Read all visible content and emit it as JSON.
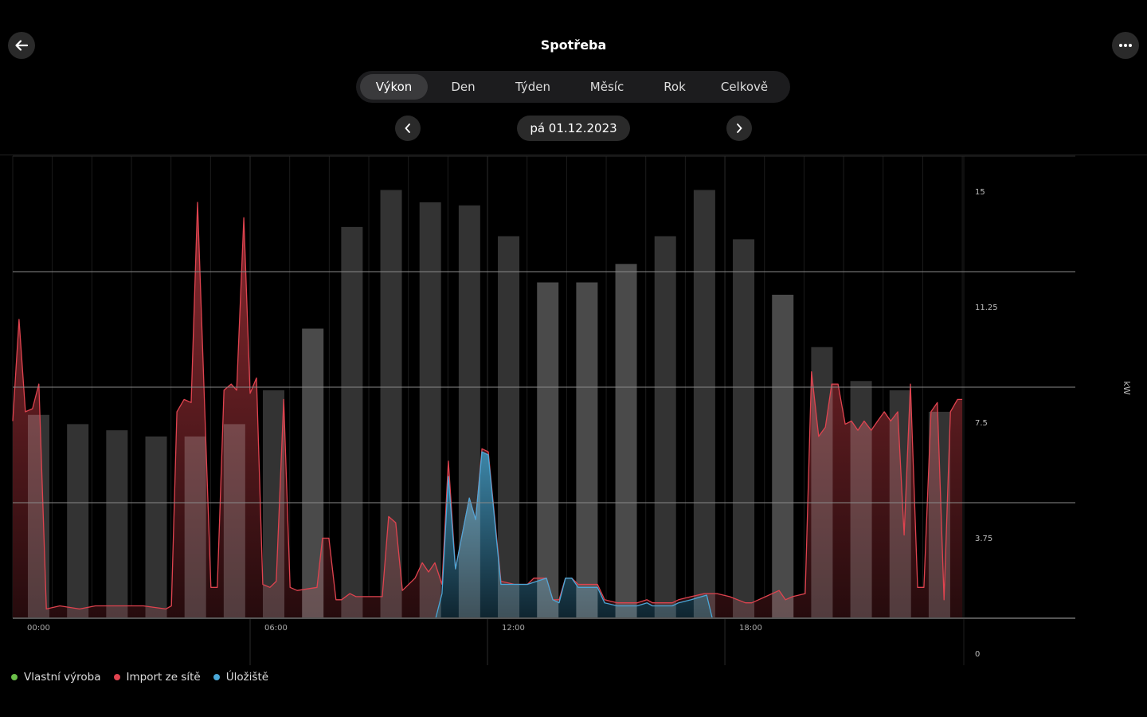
{
  "header": {
    "title": "Spotřeba",
    "back_icon": "arrow-left-icon",
    "more_icon": "ellipsis-icon"
  },
  "tabs": [
    {
      "label": "Výkon",
      "active": true
    },
    {
      "label": "Den",
      "active": false
    },
    {
      "label": "Týden",
      "active": false
    },
    {
      "label": "Měsíc",
      "active": false
    },
    {
      "label": "Rok",
      "active": false
    },
    {
      "label": "Celkově",
      "active": false
    }
  ],
  "date_nav": {
    "date": "pá 01.12.2023",
    "prev_icon": "chevron-left-icon",
    "next_icon": "chevron-right-icon"
  },
  "legend": [
    {
      "label": "Vlastní výroba",
      "color": "#6cc04a"
    },
    {
      "label": "Import ze sítě",
      "color": "#e0434f"
    },
    {
      "label": "Úložiště",
      "color": "#4aa8d8"
    }
  ],
  "chart_data": {
    "type": "area",
    "ylabel": "kW",
    "y_ticks": [
      "0",
      "3.75",
      "7.5",
      "11.25",
      "15"
    ],
    "y_tick_values": [
      0,
      3.75,
      7.5,
      11.25,
      15
    ],
    "ylim": [
      0,
      15
    ],
    "x_ticks": [
      "00:00",
      "06:00",
      "12:00",
      "18:00"
    ],
    "x_tick_values": [
      0,
      6,
      12,
      18
    ],
    "xlim": [
      0,
      24
    ],
    "grid": true,
    "legend_position": "bottom-left",
    "bars": {
      "hours": [
        0,
        1,
        2,
        3,
        4,
        5,
        6,
        7,
        8,
        9,
        10,
        11,
        12,
        13,
        14,
        15,
        16,
        17,
        18,
        19,
        20,
        21,
        22,
        23
      ],
      "values": [
        6.6,
        6.3,
        6.1,
        5.9,
        5.9,
        6.3,
        7.4,
        9.4,
        12.7,
        13.9,
        13.5,
        13.4,
        12.4,
        10.9,
        10.9,
        11.5,
        12.4,
        13.9,
        12.3,
        10.5,
        8.8,
        7.7,
        7.4,
        6.7
      ],
      "shades": [
        "dark",
        "dark",
        "dark",
        "dark",
        "dark",
        "dark",
        "dark",
        "light",
        "dark",
        "dark",
        "dark",
        "dark",
        "dark",
        "light",
        "light",
        "light",
        "dark",
        "dark",
        "dark",
        "light",
        "dark",
        "dark",
        "dark",
        "dark"
      ],
      "colors": {
        "dark": "#333333",
        "light": "#4a4a4a"
      }
    },
    "series": [
      {
        "name": "Import ze sítě",
        "color": "#e0434f",
        "points": [
          [
            0,
            6.4
          ],
          [
            0.16,
            9.7
          ],
          [
            0.32,
            6.7
          ],
          [
            0.5,
            6.8
          ],
          [
            0.66,
            7.6
          ],
          [
            0.85,
            0.3
          ],
          [
            1.19,
            0.4
          ],
          [
            1.69,
            0.3
          ],
          [
            2.09,
            0.4
          ],
          [
            2.7,
            0.4
          ],
          [
            3.3,
            0.4
          ],
          [
            3.87,
            0.3
          ],
          [
            4.01,
            0.4
          ],
          [
            4.15,
            6.7
          ],
          [
            4.33,
            7.1
          ],
          [
            4.51,
            7.0
          ],
          [
            4.67,
            13.5
          ],
          [
            5.01,
            1.0
          ],
          [
            5.17,
            1.0
          ],
          [
            5.34,
            7.4
          ],
          [
            5.52,
            7.6
          ],
          [
            5.66,
            7.4
          ],
          [
            5.84,
            13.0
          ],
          [
            6.0,
            7.3
          ],
          [
            6.16,
            7.8
          ],
          [
            6.32,
            1.1
          ],
          [
            6.5,
            1.0
          ],
          [
            6.66,
            1.2
          ],
          [
            6.85,
            7.1
          ],
          [
            7.01,
            1.0
          ],
          [
            7.19,
            0.9
          ],
          [
            7.69,
            1.0
          ],
          [
            7.83,
            2.6
          ],
          [
            7.99,
            2.6
          ],
          [
            8.17,
            0.6
          ],
          [
            8.31,
            0.6
          ],
          [
            8.52,
            0.8
          ],
          [
            8.68,
            0.7
          ],
          [
            9.02,
            0.7
          ],
          [
            9.34,
            0.7
          ],
          [
            9.5,
            3.3
          ],
          [
            9.68,
            3.1
          ],
          [
            9.85,
            0.9
          ],
          [
            10.17,
            1.3
          ],
          [
            10.35,
            1.8
          ],
          [
            10.51,
            1.5
          ],
          [
            10.67,
            1.8
          ],
          [
            10.85,
            1.1
          ],
          [
            11.01,
            5.1
          ],
          [
            11.19,
            1.6
          ],
          [
            11.54,
            3.9
          ],
          [
            11.7,
            3.2
          ],
          [
            11.86,
            5.5
          ],
          [
            12.02,
            5.4
          ],
          [
            12.34,
            1.2
          ],
          [
            12.68,
            1.1
          ],
          [
            13.01,
            1.1
          ],
          [
            13.17,
            1.3
          ],
          [
            13.49,
            1.3
          ],
          [
            13.65,
            0.6
          ],
          [
            13.81,
            0.6
          ],
          [
            13.97,
            1.3
          ],
          [
            14.13,
            1.3
          ],
          [
            14.29,
            1.1
          ],
          [
            14.78,
            1.1
          ],
          [
            14.96,
            0.6
          ],
          [
            15.28,
            0.5
          ],
          [
            15.78,
            0.5
          ],
          [
            16.03,
            0.6
          ],
          [
            16.17,
            0.5
          ],
          [
            16.67,
            0.5
          ],
          [
            16.83,
            0.6
          ],
          [
            17.15,
            0.7
          ],
          [
            17.48,
            0.8
          ],
          [
            17.64,
            0.8
          ],
          [
            17.8,
            0.8
          ],
          [
            18.12,
            0.7
          ],
          [
            18.52,
            0.5
          ],
          [
            18.68,
            0.5
          ],
          [
            19.03,
            0.7
          ],
          [
            19.37,
            0.9
          ],
          [
            19.53,
            0.6
          ],
          [
            19.71,
            0.7
          ],
          [
            20.03,
            0.8
          ],
          [
            20.19,
            8.0
          ],
          [
            20.37,
            5.9
          ],
          [
            20.54,
            6.2
          ],
          [
            20.7,
            7.6
          ],
          [
            20.86,
            7.6
          ],
          [
            21.04,
            6.3
          ],
          [
            21.2,
            6.4
          ],
          [
            21.36,
            6.1
          ],
          [
            21.52,
            6.4
          ],
          [
            21.7,
            6.1
          ],
          [
            21.86,
            6.4
          ],
          [
            22.03,
            6.7
          ],
          [
            22.19,
            6.4
          ],
          [
            22.37,
            6.7
          ],
          [
            22.53,
            2.7
          ],
          [
            22.69,
            7.6
          ],
          [
            22.87,
            1.0
          ],
          [
            23.03,
            1.0
          ],
          [
            23.21,
            6.7
          ],
          [
            23.37,
            7.0
          ],
          [
            23.54,
            0.6
          ],
          [
            23.7,
            6.7
          ],
          [
            23.88,
            7.1
          ],
          [
            24.0,
            7.1
          ]
        ]
      },
      {
        "name": "Úložiště",
        "color": "#4aa8d8",
        "points": [
          [
            10.69,
            0
          ],
          [
            10.85,
            0.8
          ],
          [
            11.01,
            4.6
          ],
          [
            11.19,
            1.6
          ],
          [
            11.54,
            3.9
          ],
          [
            11.7,
            3.2
          ],
          [
            11.86,
            5.4
          ],
          [
            12.02,
            5.3
          ],
          [
            12.34,
            1.1
          ],
          [
            12.68,
            1.1
          ],
          [
            13.01,
            1.1
          ],
          [
            13.49,
            1.3
          ],
          [
            13.65,
            0.6
          ],
          [
            13.81,
            0.5
          ],
          [
            13.97,
            1.3
          ],
          [
            14.13,
            1.3
          ],
          [
            14.29,
            1.0
          ],
          [
            14.78,
            1.0
          ],
          [
            14.96,
            0.5
          ],
          [
            15.28,
            0.4
          ],
          [
            15.78,
            0.4
          ],
          [
            16.03,
            0.5
          ],
          [
            16.17,
            0.4
          ],
          [
            16.67,
            0.4
          ],
          [
            16.83,
            0.5
          ],
          [
            17.15,
            0.6
          ],
          [
            17.54,
            0.75
          ],
          [
            17.68,
            0
          ]
        ]
      }
    ]
  }
}
